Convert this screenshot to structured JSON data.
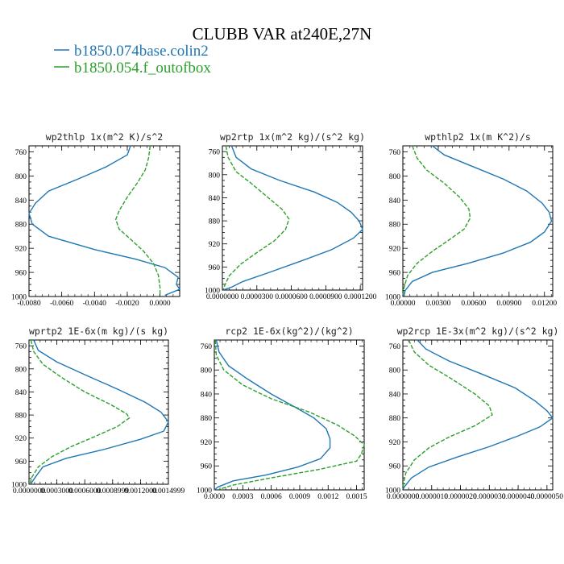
{
  "figure": {
    "title": "CLUBB VAR at240E,27N",
    "legend": [
      {
        "label": "b1850.074base.colin2",
        "color": "#1f77b4",
        "dash": "solid"
      },
      {
        "label": "b1850.054.f_outofbox",
        "color": "#2ca02c",
        "dash": "dashed"
      }
    ]
  },
  "chart_data": [
    {
      "type": "line",
      "title": "wp2thlp  1x(m^2 K)/s^2",
      "xlim": [
        -0.008,
        0.0012
      ],
      "ylim": [
        1000,
        750
      ],
      "y_axis": "pressure (reversed)",
      "xticks": [
        "-0.0080",
        "-0.0060",
        "-0.0040",
        "-0.0020",
        "0.0000"
      ],
      "xtick_values": [
        -0.008,
        -0.006,
        -0.004,
        -0.002,
        0.0
      ],
      "yticks": [
        "760",
        "800",
        "840",
        "880",
        "920",
        "960",
        "1000"
      ],
      "ytick_values": [
        760,
        800,
        840,
        880,
        920,
        960,
        1000
      ],
      "series": [
        {
          "name": "b1850.074base.colin2",
          "points": [
            [
              -0.0018,
              750
            ],
            [
              -0.002,
              765
            ],
            [
              -0.0033,
              785
            ],
            [
              -0.005,
              805
            ],
            [
              -0.0068,
              825
            ],
            [
              -0.0076,
              845
            ],
            [
              -0.008,
              862
            ],
            [
              -0.0078,
              880
            ],
            [
              -0.0068,
              900
            ],
            [
              -0.004,
              922
            ],
            [
              -0.0015,
              938
            ],
            [
              0.0003,
              952
            ],
            [
              0.0011,
              968
            ],
            [
              0.001,
              980
            ],
            [
              0.0012,
              988
            ],
            [
              0.0003,
              998
            ]
          ]
        },
        {
          "name": "b1850.054.f_outofbox",
          "points": [
            [
              -0.0006,
              750
            ],
            [
              -0.0007,
              770
            ],
            [
              -0.0009,
              790
            ],
            [
              -0.0014,
              812
            ],
            [
              -0.002,
              835
            ],
            [
              -0.0025,
              858
            ],
            [
              -0.0027,
              872
            ],
            [
              -0.0025,
              888
            ],
            [
              -0.0018,
              905
            ],
            [
              -0.001,
              925
            ],
            [
              -0.0004,
              945
            ],
            [
              -0.0001,
              965
            ],
            [
              0.0,
              985
            ],
            [
              0.0,
              998
            ]
          ]
        }
      ]
    },
    {
      "type": "line",
      "title": "wp2rtp  1x(m^2 kg)/(s^2 kg)",
      "xlim": [
        0.0,
        0.000122
      ],
      "ylim": [
        1000,
        750
      ],
      "y_axis": "pressure (reversed)",
      "xticks": [
        "0.0000000",
        "0.0000300",
        "0.0000600",
        "0.0000900",
        "0.0001200"
      ],
      "xtick_values": [
        0.0,
        3e-05,
        6e-05,
        9e-05,
        0.00012
      ],
      "yticks": [
        "760",
        "800",
        "840",
        "880",
        "920",
        "960",
        "1000"
      ],
      "ytick_values": [
        760,
        800,
        840,
        880,
        920,
        960,
        1000
      ],
      "series": [
        {
          "name": "b1850.074base.colin2",
          "points": [
            [
              8e-06,
              750
            ],
            [
              1.2e-05,
              770
            ],
            [
              2.5e-05,
              790
            ],
            [
              5e-05,
              810
            ],
            [
              8e-05,
              830
            ],
            [
              0.0001,
              848
            ],
            [
              0.000112,
              865
            ],
            [
              0.000119,
              880
            ],
            [
              0.000122,
              895
            ],
            [
              0.000114,
              910
            ],
            [
              9.5e-05,
              930
            ],
            [
              6.8e-05,
              950
            ],
            [
              4e-05,
              970
            ],
            [
              1.8e-05,
              985
            ],
            [
              8e-06,
              995
            ],
            [
              2e-06,
              999
            ]
          ]
        },
        {
          "name": "b1850.054.f_outofbox",
          "points": [
            [
              3e-06,
              750
            ],
            [
              5e-06,
              770
            ],
            [
              1.2e-05,
              795
            ],
            [
              2.5e-05,
              815
            ],
            [
              4e-05,
              840
            ],
            [
              5.2e-05,
              860
            ],
            [
              5.8e-05,
              877
            ],
            [
              5.5e-05,
              895
            ],
            [
              4.5e-05,
              915
            ],
            [
              3e-05,
              935
            ],
            [
              1.6e-05,
              955
            ],
            [
              6e-06,
              975
            ],
            [
              2e-06,
              992
            ],
            [
              1e-06,
              999
            ]
          ]
        }
      ]
    },
    {
      "type": "line",
      "title": "wpthlp2  1x(m K^2)/s",
      "xlim": [
        0.0,
        0.0127
      ],
      "ylim": [
        1000,
        750
      ],
      "y_axis": "pressure (reversed)",
      "xticks": [
        "0.00000",
        "0.00300",
        "0.00600",
        "0.00900",
        "0.01200"
      ],
      "xtick_values": [
        0.0,
        0.003,
        0.006,
        0.009,
        0.012
      ],
      "yticks": [
        "760",
        "800",
        "840",
        "880",
        "920",
        "960",
        "1000"
      ],
      "ytick_values": [
        760,
        800,
        840,
        880,
        920,
        960,
        1000
      ],
      "series": [
        {
          "name": "b1850.074base.colin2",
          "points": [
            [
              0.0025,
              750
            ],
            [
              0.0035,
              765
            ],
            [
              0.006,
              785
            ],
            [
              0.0085,
              805
            ],
            [
              0.0105,
              825
            ],
            [
              0.0118,
              845
            ],
            [
              0.0124,
              860
            ],
            [
              0.0126,
              875
            ],
            [
              0.012,
              893
            ],
            [
              0.0108,
              910
            ],
            [
              0.0085,
              928
            ],
            [
              0.0055,
              945
            ],
            [
              0.0025,
              960
            ],
            [
              0.0008,
              975
            ],
            [
              0.0002,
              990
            ],
            [
              0.0001,
              999
            ]
          ]
        },
        {
          "name": "b1850.054.f_outofbox",
          "points": [
            [
              0.0008,
              750
            ],
            [
              0.0012,
              770
            ],
            [
              0.002,
              790
            ],
            [
              0.0035,
              812
            ],
            [
              0.0048,
              835
            ],
            [
              0.0056,
              855
            ],
            [
              0.0057,
              870
            ],
            [
              0.0052,
              888
            ],
            [
              0.004,
              905
            ],
            [
              0.0025,
              925
            ],
            [
              0.0012,
              945
            ],
            [
              0.0004,
              965
            ],
            [
              0.0001,
              985
            ],
            [
              0.0,
              999
            ]
          ]
        }
      ]
    },
    {
      "type": "line",
      "title": "wprtp2  1E-6x(m kg)/(s kg)",
      "xlim": [
        0.0,
        0.0015
      ],
      "ylim": [
        1000,
        750
      ],
      "y_axis": "pressure (reversed)",
      "xticks": [
        "0.0000000",
        "0.0003000",
        "0.0006000",
        "0.0008999",
        "0.0012000",
        "0.0014999"
      ],
      "xtick_values": [
        0.0,
        0.0003,
        0.0006,
        0.0009,
        0.0012,
        0.0015
      ],
      "yticks": [
        "760",
        "800",
        "840",
        "880",
        "920",
        "960",
        "1000"
      ],
      "ytick_values": [
        760,
        800,
        840,
        880,
        920,
        960,
        1000
      ],
      "series": [
        {
          "name": "b1850.074base.colin2",
          "points": [
            [
              5e-05,
              750
            ],
            [
              0.0001,
              768
            ],
            [
              0.0003,
              788
            ],
            [
              0.0006,
              810
            ],
            [
              0.00095,
              835
            ],
            [
              0.00125,
              858
            ],
            [
              0.00142,
              875
            ],
            [
              0.0015,
              892
            ],
            [
              0.00145,
              908
            ],
            [
              0.0012,
              922
            ],
            [
              0.0008,
              940
            ],
            [
              0.0004,
              955
            ],
            [
              0.00015,
              970
            ],
            [
              8e-05,
              985
            ],
            [
              2e-05,
              999
            ]
          ]
        },
        {
          "name": "b1850.054.f_outofbox",
          "points": [
            [
              2e-05,
              750
            ],
            [
              5e-05,
              770
            ],
            [
              0.00015,
              792
            ],
            [
              0.00035,
              815
            ],
            [
              0.0006,
              840
            ],
            [
              0.00088,
              862
            ],
            [
              0.00105,
              878
            ],
            [
              0.00108,
              885
            ],
            [
              0.00095,
              900
            ],
            [
              0.0007,
              918
            ],
            [
              0.00045,
              935
            ],
            [
              0.00025,
              952
            ],
            [
              0.0001,
              970
            ],
            [
              3e-05,
              988
            ],
            [
              1e-05,
              999
            ]
          ]
        }
      ]
    },
    {
      "type": "line",
      "title": "rcp2  1E-6x(kg^2)/(kg^2)",
      "xlim": [
        0.0,
        0.00158
      ],
      "ylim": [
        1000,
        750
      ],
      "y_axis": "pressure (reversed)",
      "xticks": [
        "0.0000",
        "0.0003",
        "0.0006",
        "0.0009",
        "0.0012",
        "0.0015"
      ],
      "xtick_values": [
        0.0,
        0.0003,
        0.0006,
        0.0009,
        0.0012,
        0.0015
      ],
      "yticks": [
        "760",
        "800",
        "840",
        "880",
        "920",
        "960",
        "1000"
      ],
      "ytick_values": [
        760,
        800,
        840,
        880,
        920,
        960,
        1000
      ],
      "series": [
        {
          "name": "b1850.074base.colin2",
          "points": [
            [
              2e-05,
              750
            ],
            [
              5e-05,
              770
            ],
            [
              0.00015,
              793
            ],
            [
              0.00035,
              815
            ],
            [
              0.0006,
              840
            ],
            [
              0.00085,
              862
            ],
            [
              0.00105,
              880
            ],
            [
              0.00118,
              898
            ],
            [
              0.00122,
              915
            ],
            [
              0.00122,
              930
            ],
            [
              0.00112,
              948
            ],
            [
              0.00088,
              962
            ],
            [
              0.00055,
              975
            ],
            [
              0.0002,
              985
            ],
            [
              4e-05,
              995
            ],
            [
              0.0,
              1000
            ]
          ]
        },
        {
          "name": "b1850.054.f_outofbox",
          "points": [
            [
              1e-05,
              750
            ],
            [
              2e-05,
              775
            ],
            [
              0.0001,
              800
            ],
            [
              0.0003,
              825
            ],
            [
              0.0006,
              848
            ],
            [
              0.001,
              870
            ],
            [
              0.0013,
              892
            ],
            [
              0.00148,
              910
            ],
            [
              0.00158,
              925
            ],
            [
              0.00155,
              940
            ],
            [
              0.0015,
              952
            ],
            [
              0.0011,
              966
            ],
            [
              0.0006,
              980
            ],
            [
              0.0002,
              992
            ],
            [
              5e-05,
              999
            ]
          ]
        }
      ]
    },
    {
      "type": "line",
      "title": "wp2rcp  1E-3x(m^2 kg)/(s^2 kg)",
      "xlim": [
        0.0,
        5.2e-06
      ],
      "ylim": [
        1000,
        750
      ],
      "y_axis": "pressure (reversed)",
      "xticks": [
        "0.0000000",
        "0.0000010",
        "0.0000020",
        "0.0000030",
        "0.0000040",
        "0.0000050"
      ],
      "xtick_values": [
        0.0,
        1e-06,
        2e-06,
        3e-06,
        4e-06,
        5e-06
      ],
      "yticks": [
        "760",
        "800",
        "840",
        "880",
        "920",
        "960",
        "1000"
      ],
      "ytick_values": [
        760,
        800,
        840,
        880,
        920,
        960,
        1000
      ],
      "series": [
        {
          "name": "b1850.074base.colin2",
          "points": [
            [
              5e-07,
              750
            ],
            [
              8e-07,
              765
            ],
            [
              1.6e-06,
              785
            ],
            [
              2.8e-06,
              808
            ],
            [
              3.9e-06,
              830
            ],
            [
              4.6e-06,
              852
            ],
            [
              5e-06,
              868
            ],
            [
              5.2e-06,
              880
            ],
            [
              4.75e-06,
              895
            ],
            [
              4e-06,
              910
            ],
            [
              3e-06,
              928
            ],
            [
              1.9e-06,
              945
            ],
            [
              9e-07,
              962
            ],
            [
              3e-07,
              980
            ],
            [
              5e-08,
              995
            ],
            [
              1e-08,
              999
            ]
          ]
        },
        {
          "name": "b1850.054.f_outofbox",
          "points": [
            [
              2e-07,
              750
            ],
            [
              4e-07,
              770
            ],
            [
              9e-07,
              792
            ],
            [
              1.7e-06,
              815
            ],
            [
              2.5e-06,
              840
            ],
            [
              3e-06,
              860
            ],
            [
              3.1e-06,
              875
            ],
            [
              2.5e-06,
              893
            ],
            [
              1.6e-06,
              912
            ],
            [
              9e-07,
              930
            ],
            [
              4e-07,
              950
            ],
            [
              1e-07,
              972
            ],
            [
              2e-08,
              990
            ],
            [
              0.0,
              999
            ]
          ]
        }
      ]
    }
  ]
}
